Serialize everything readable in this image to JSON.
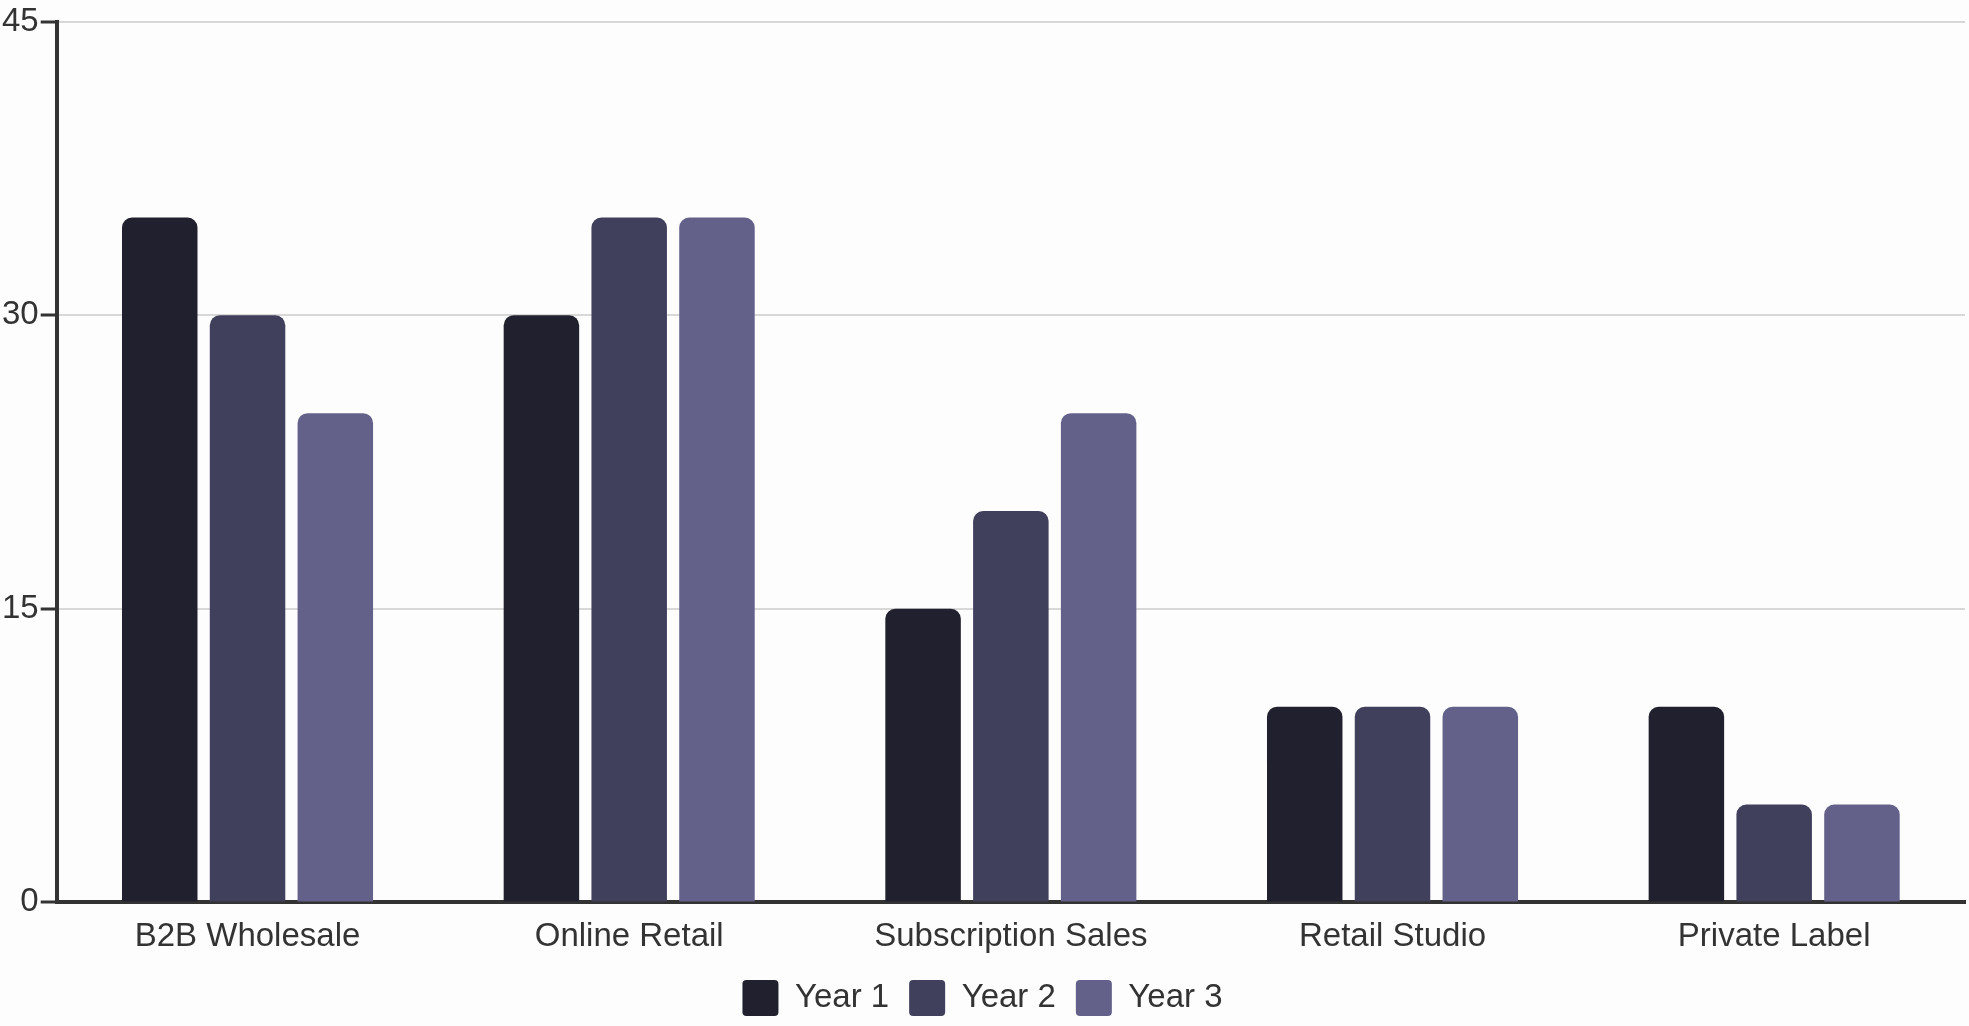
{
  "chart_data": {
    "type": "bar",
    "categories": [
      "B2B Wholesale",
      "Online Retail",
      "Subscription Sales",
      "Retail Studio",
      "Private Label"
    ],
    "series": [
      {
        "name": "Year 1",
        "color": "#20202e",
        "values": [
          35,
          30,
          15,
          10,
          10
        ]
      },
      {
        "name": "Year 2",
        "color": "#403f5c",
        "values": [
          30,
          35,
          20,
          10,
          5
        ]
      },
      {
        "name": "Year 3",
        "color": "#63618a",
        "values": [
          25,
          35,
          25,
          10,
          5
        ]
      }
    ],
    "ylim": [
      0,
      45
    ],
    "yticks": [
      0,
      15,
      30,
      45
    ],
    "grid": "y",
    "legend": "bottom"
  }
}
